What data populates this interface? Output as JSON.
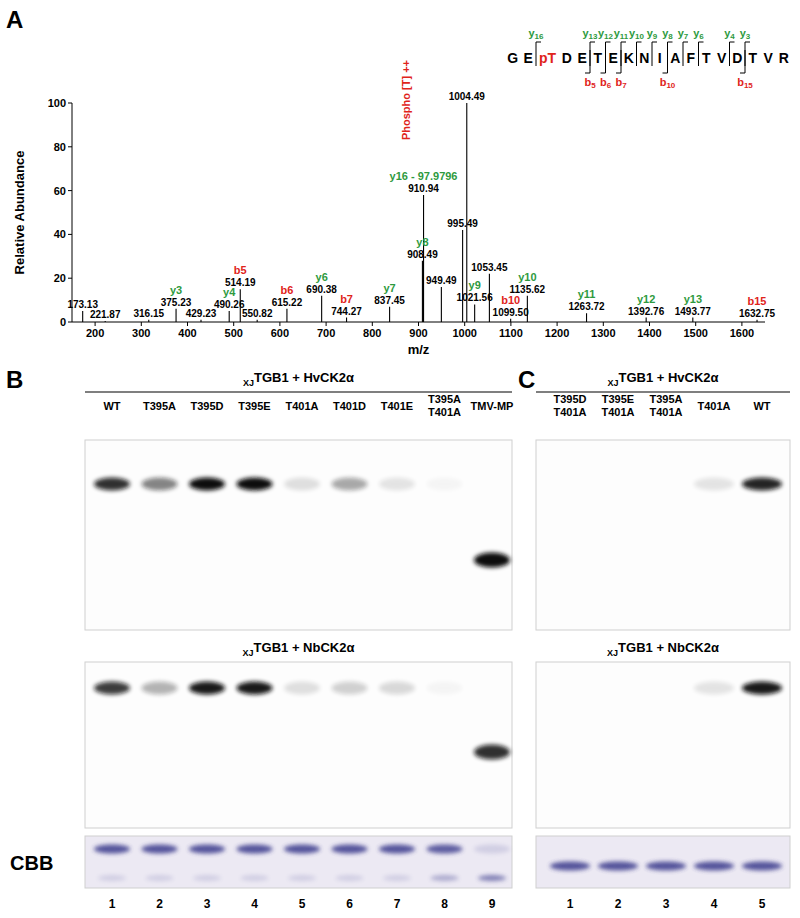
{
  "panel_labels": [
    "A",
    "B",
    "C"
  ],
  "chart_data": {
    "type": "bar",
    "x_label": "m/z",
    "y_label": "Relative Abundance",
    "xlim": [
      150,
      1650
    ],
    "xticks": [
      200,
      300,
      400,
      500,
      600,
      700,
      800,
      900,
      1000,
      1100,
      1200,
      1300,
      1400,
      1500,
      1600
    ],
    "ylim": [
      0,
      100
    ],
    "yticks": [
      0,
      20,
      40,
      60,
      80,
      100
    ],
    "grid": false,
    "color": "#000000",
    "x": [
      173.13,
      221.87,
      316.15,
      375.23,
      429.23,
      490.26,
      514.19,
      550.82,
      615.22,
      690.38,
      744.27,
      837.45,
      908.49,
      910.94,
      949.49,
      995.49,
      1004.49,
      1021.56,
      1053.45,
      1099.5,
      1135.62,
      1263.72,
      1392.76,
      1493.77,
      1632.75
    ],
    "values": [
      5,
      0.5,
      1,
      6,
      1,
      5,
      15,
      1,
      6,
      12,
      2,
      7,
      28,
      58,
      16,
      42,
      100,
      8,
      22,
      1.5,
      12,
      4,
      2,
      2,
      1
    ],
    "peak_labels": [
      "173.13",
      "221.87",
      "316.15",
      "375.23",
      "429.23",
      "490.26",
      "514.19",
      "550.82",
      "615.22",
      "690.38",
      "744.27",
      "837.45",
      "908.49",
      "910.94",
      "949.49",
      "995.49",
      "1004.49",
      "1021.56",
      "1053.45",
      "1099.50",
      "1135.62",
      "1263.72",
      "1392.76",
      "1493.77",
      "1632.75"
    ],
    "ion_labels": [
      null,
      null,
      null,
      "y3",
      null,
      "y4",
      "b5",
      null,
      "b6",
      "y6",
      "b7",
      "y7",
      "y8",
      "y16 - 97.9796",
      null,
      null,
      null,
      "y9",
      null,
      "b10",
      "y10",
      "y11",
      "y12",
      "y13",
      "b15"
    ],
    "ion_series": [
      {
        "name": "b",
        "color": "#e0241b"
      },
      {
        "name": "y",
        "color": "#2e9a3e"
      }
    ],
    "annotations": [
      {
        "text": "Phospho [T] ++",
        "color": "#e0241b"
      }
    ]
  },
  "peptide": {
    "residues": [
      "G",
      "E",
      "pT",
      "D",
      "E",
      "T",
      "E",
      "K",
      "N",
      "I",
      "A",
      "F",
      "T",
      "V",
      "D",
      "T",
      "V",
      "R"
    ],
    "residue_colors": [
      "#000000",
      "#000000",
      "#e0241b",
      "#000000",
      "#000000",
      "#000000",
      "#000000",
      "#000000",
      "#000000",
      "#000000",
      "#000000",
      "#000000",
      "#000000",
      "#000000",
      "#000000",
      "#000000",
      "#000000",
      "#000000"
    ],
    "y_ions": {
      "prefix": "y",
      "numbers": [
        16,
        13,
        12,
        11,
        10,
        9,
        8,
        7,
        6,
        4,
        3
      ],
      "color": "#2e9a3e"
    },
    "b_ions": {
      "prefix": "b",
      "numbers": [
        5,
        6,
        7,
        10,
        15
      ],
      "color": "#e0241b"
    }
  },
  "panel_b": {
    "lanes": [
      [
        "WT"
      ],
      [
        "T395A"
      ],
      [
        "T395D"
      ],
      [
        "T395E"
      ],
      [
        "T401A"
      ],
      [
        "T401D"
      ],
      [
        "T401E"
      ],
      [
        "T395A",
        "T401A"
      ],
      [
        "TMV-MP"
      ]
    ],
    "lane_numbers": [
      1,
      2,
      3,
      4,
      5,
      6,
      7,
      8,
      9
    ],
    "blots": [
      {
        "title_sub": "XJ",
        "title": "TGB1 + HvCK2α",
        "upper_band": [
          0.85,
          0.5,
          1,
          1,
          0.12,
          0.35,
          0.1,
          0.03,
          0
        ],
        "lower_band": [
          0,
          0,
          0,
          0,
          0,
          0,
          0,
          0,
          1
        ]
      },
      {
        "title_sub": "XJ",
        "title": "TGB1 + NbCK2α",
        "upper_band": [
          0.8,
          0.3,
          0.95,
          0.95,
          0.12,
          0.18,
          0.15,
          0.03,
          0
        ],
        "lower_band": [
          0,
          0,
          0,
          0,
          0,
          0,
          0,
          0,
          0.85
        ]
      }
    ],
    "stain": {
      "label": "CBB",
      "upper_band": [
        0.85,
        0.85,
        0.85,
        0.85,
        0.85,
        0.85,
        0.85,
        0.8,
        0.15
      ],
      "lower_band": [
        0.15,
        0.15,
        0.15,
        0.15,
        0.15,
        0.15,
        0.15,
        0.35,
        0.6
      ]
    }
  },
  "panel_c": {
    "lanes": [
      [
        "T395D",
        "T401A"
      ],
      [
        "T395E",
        "T401A"
      ],
      [
        "T395A",
        "T401A"
      ],
      [
        "T401A"
      ],
      [
        "WT"
      ]
    ],
    "lane_numbers": [
      1,
      2,
      3,
      4,
      5
    ],
    "blots": [
      {
        "title_sub": "XJ",
        "title": "TGB1 + HvCK2α",
        "upper_band": [
          0,
          0,
          0,
          0.1,
          0.9
        ]
      },
      {
        "title_sub": "XJ",
        "title": "TGB1 + NbCK2α",
        "upper_band": [
          0,
          0,
          0,
          0.1,
          0.95
        ]
      }
    ],
    "stain": {
      "upper_band": [
        0.85,
        0.85,
        0.85,
        0.85,
        0.85
      ]
    }
  }
}
